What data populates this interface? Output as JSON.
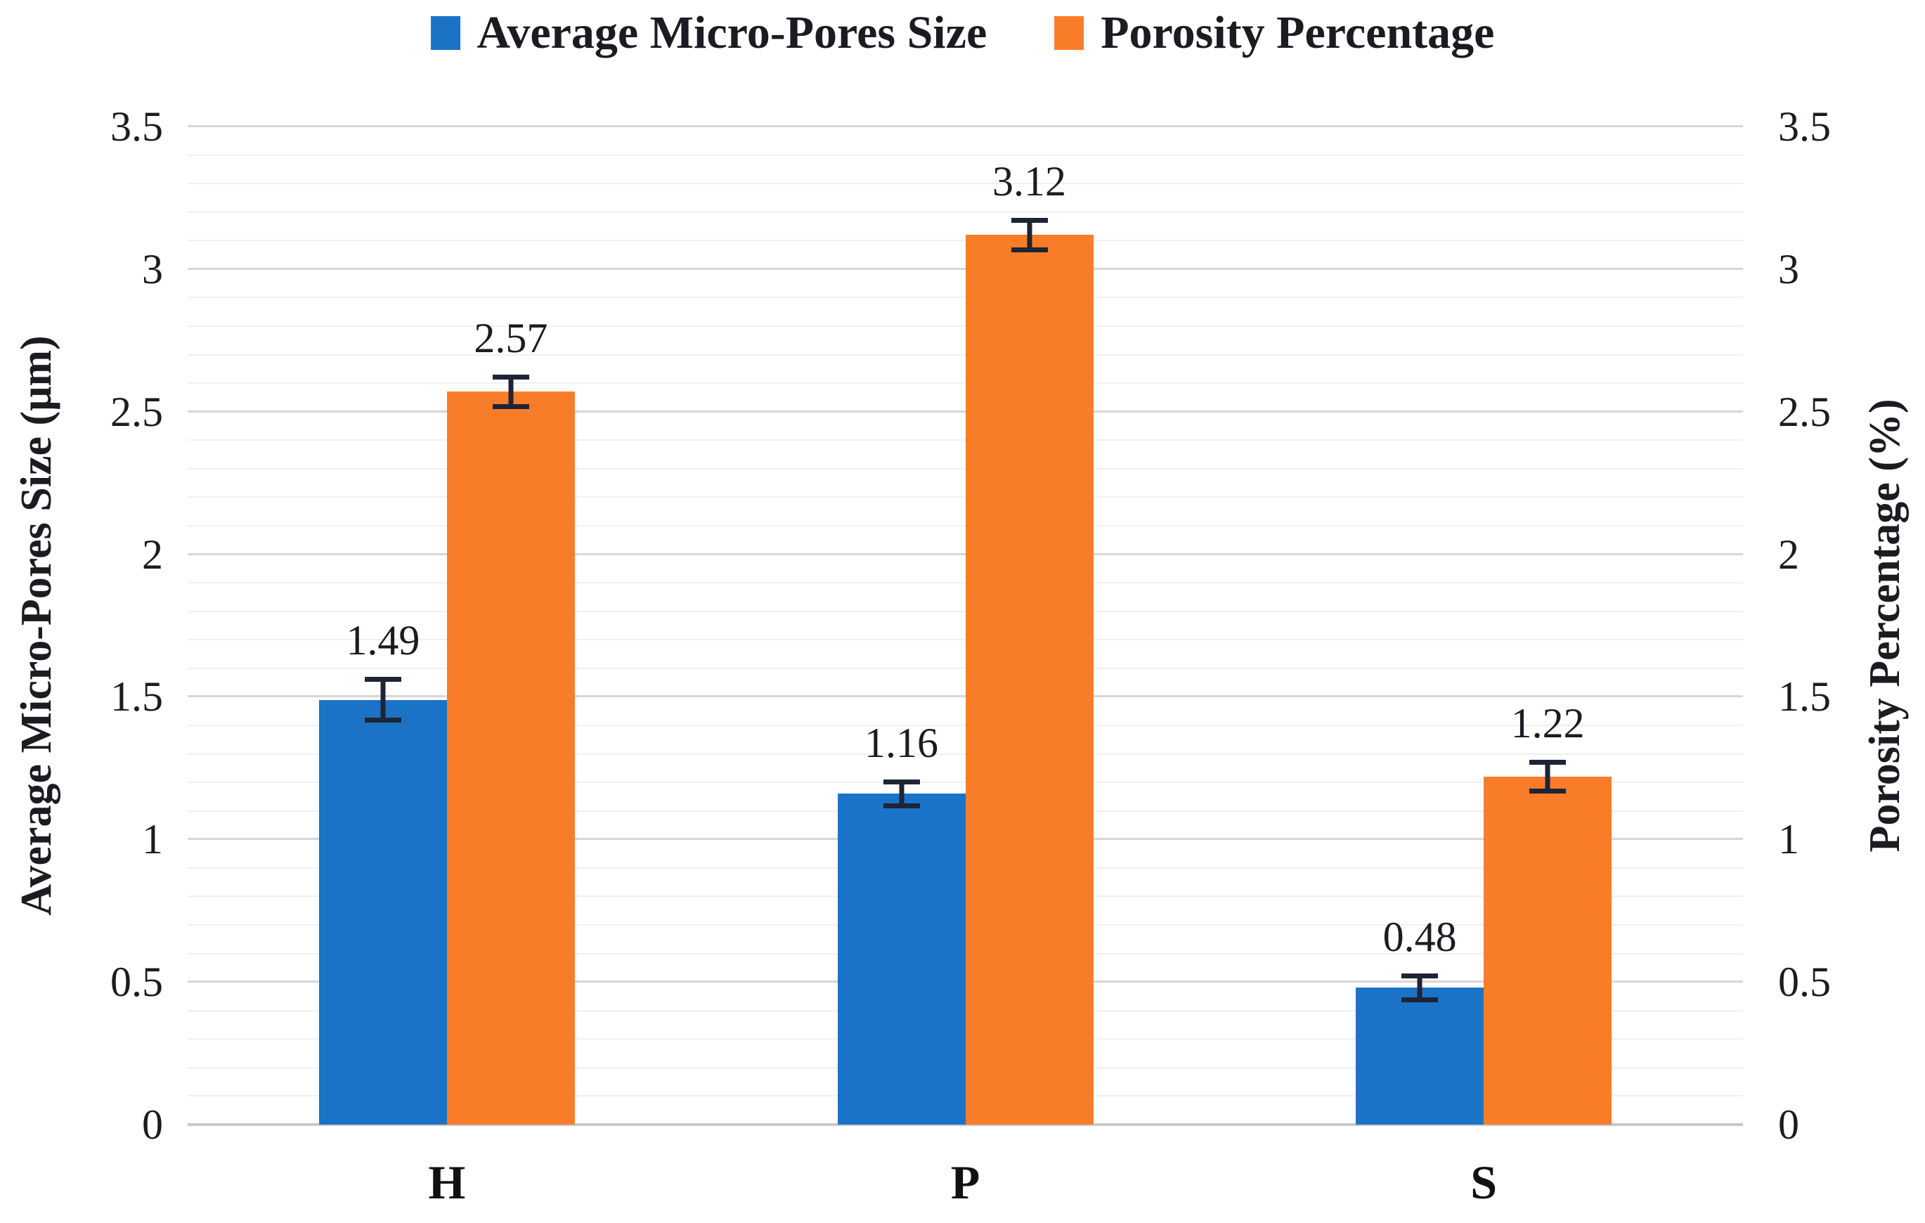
{
  "figure": {
    "background_color": "#ffffff",
    "text_color": "#1b1b22"
  },
  "legend": {
    "position": "top",
    "items": [
      {
        "label": "Average Micro-Pores Size",
        "color": "#1b73c8"
      },
      {
        "label": "Porosity Percentage",
        "color": "#f97d28"
      }
    ]
  },
  "chart_data": {
    "type": "bar",
    "categories": [
      "H",
      "P",
      "S"
    ],
    "series": [
      {
        "name": "Average Micro-Pores Size",
        "axis": "left",
        "color": "#1b73c8",
        "values": [
          1.49,
          1.16,
          0.48
        ],
        "labels": [
          "1.49",
          "1.16",
          "0.48"
        ],
        "errors": [
          0.08,
          0.05,
          0.05
        ]
      },
      {
        "name": "Porosity Percentage",
        "axis": "right",
        "color": "#f97d28",
        "values": [
          2.57,
          3.12,
          1.22
        ],
        "labels": [
          "2.57",
          "3.12",
          "1.22"
        ],
        "errors": [
          0.06,
          0.06,
          0.06
        ]
      }
    ],
    "left_axis": {
      "title": "Average Micro-Pores Size (μm)",
      "min": 0,
      "max": 3.5,
      "major_step": 0.5,
      "minor_step": 0.1,
      "tick_labels": [
        "0",
        "0.5",
        "1",
        "1.5",
        "2",
        "2.5",
        "3",
        "3.5"
      ]
    },
    "right_axis": {
      "title": "Porosity Percentage (%)",
      "min": 0,
      "max": 3.5,
      "major_step": 0.5,
      "minor_step": 0.1,
      "tick_labels": [
        "0",
        "0.5",
        "1",
        "1.5",
        "2",
        "2.5",
        "3",
        "3.5"
      ]
    },
    "grid": {
      "orientation": "horizontal",
      "major_color": "#d7d7d7",
      "minor_color": "#f0f0f0",
      "baseline_color": "#c9c9c9"
    },
    "error_bar_color": "#1e2435",
    "legend_position": "top"
  }
}
